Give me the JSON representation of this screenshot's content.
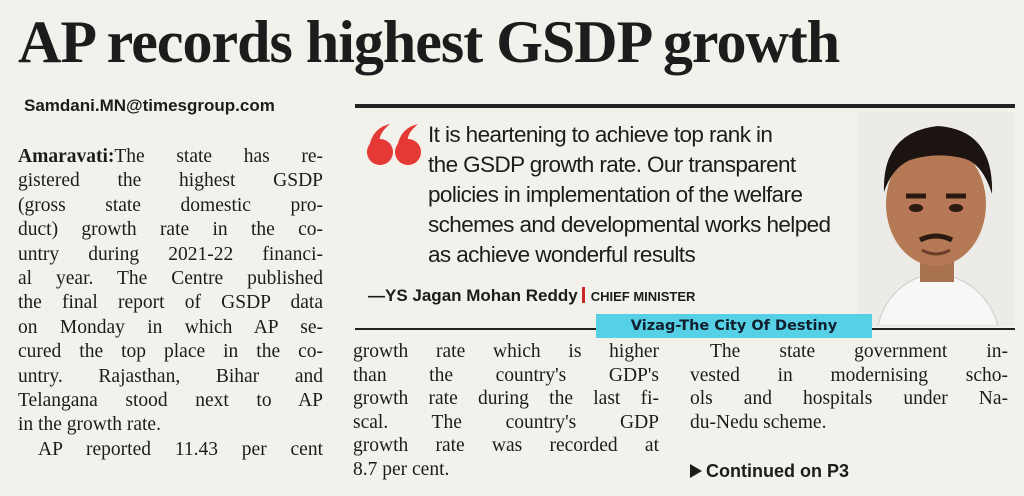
{
  "headline": "AP records highest GSDP growth",
  "byline": "Samdani.MN@timesgroup.com",
  "column1": {
    "dateline": "Amaravati:",
    "lines": [
      "The state has re-",
      "gistered the highest GSDP",
      "(gross state domestic pro-",
      "duct) growth rate in the co-",
      "untry during 2021-22 financi-",
      "al year. The Centre published",
      "the final report of GSDP data",
      "on Monday in which AP se-",
      "cured the top place in the co-",
      "untry. Rajasthan, Bihar and",
      "Telangana stood next to AP",
      "in the growth rate.",
      "AP reported 11.43 per cent"
    ]
  },
  "quote": {
    "lines": [
      "It is heartening to achieve top rank in",
      "the GSDP growth rate. Our transparent",
      "policies in implementation of the welfare",
      "schemes and developmental works helped",
      "as achieve wonderful results"
    ],
    "attribution": "—YS Jagan Mohan Reddy",
    "role": "CHIEF MINISTER"
  },
  "tag": "Vizag-The City Of Destiny",
  "column2": {
    "lines": [
      "growth rate which is higher",
      "than the country's GDP's",
      "growth rate during the last fi-",
      "scal. The country's GDP",
      "growth rate was recorded at",
      "8.7 per cent."
    ]
  },
  "column3": {
    "lines": [
      "The state government in-",
      "vested in modernising scho-",
      "ols and hospitals under Na-",
      "du-Nedu scheme."
    ]
  },
  "continued": "Continued on P3"
}
